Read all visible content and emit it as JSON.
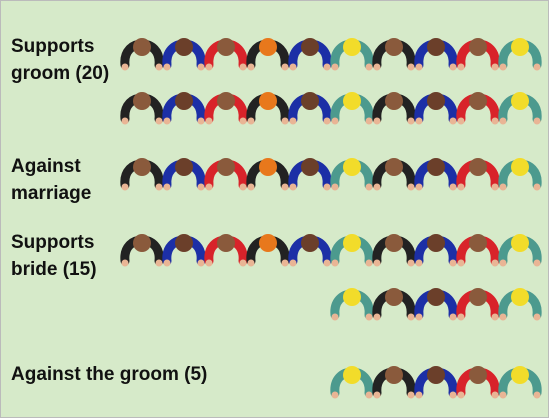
{
  "chart_data": {
    "type": "pictogram",
    "categories": [
      "Supports groom (20)",
      "Against marriage",
      "Supports bride (15)",
      "Against the groom (5)"
    ],
    "values": [
      20,
      10,
      15,
      5
    ],
    "per_row": 10,
    "colors": [
      "#222222",
      "#1c2fa6",
      "#d8232a",
      "#222222",
      "#1c2fa6",
      "#4c9a8e",
      "#222222",
      "#1c2fa6",
      "#d8232a",
      "#4c9a8e"
    ],
    "head_colors": [
      "#8a5a3c",
      "#6b3f2a",
      "#8a5a3c",
      "#e8781c",
      "#6b3f2a",
      "#f2dc2a",
      "#8a5a3c",
      "#6b3f2a",
      "#8a5a3c",
      "#f2dc2a"
    ]
  }
}
